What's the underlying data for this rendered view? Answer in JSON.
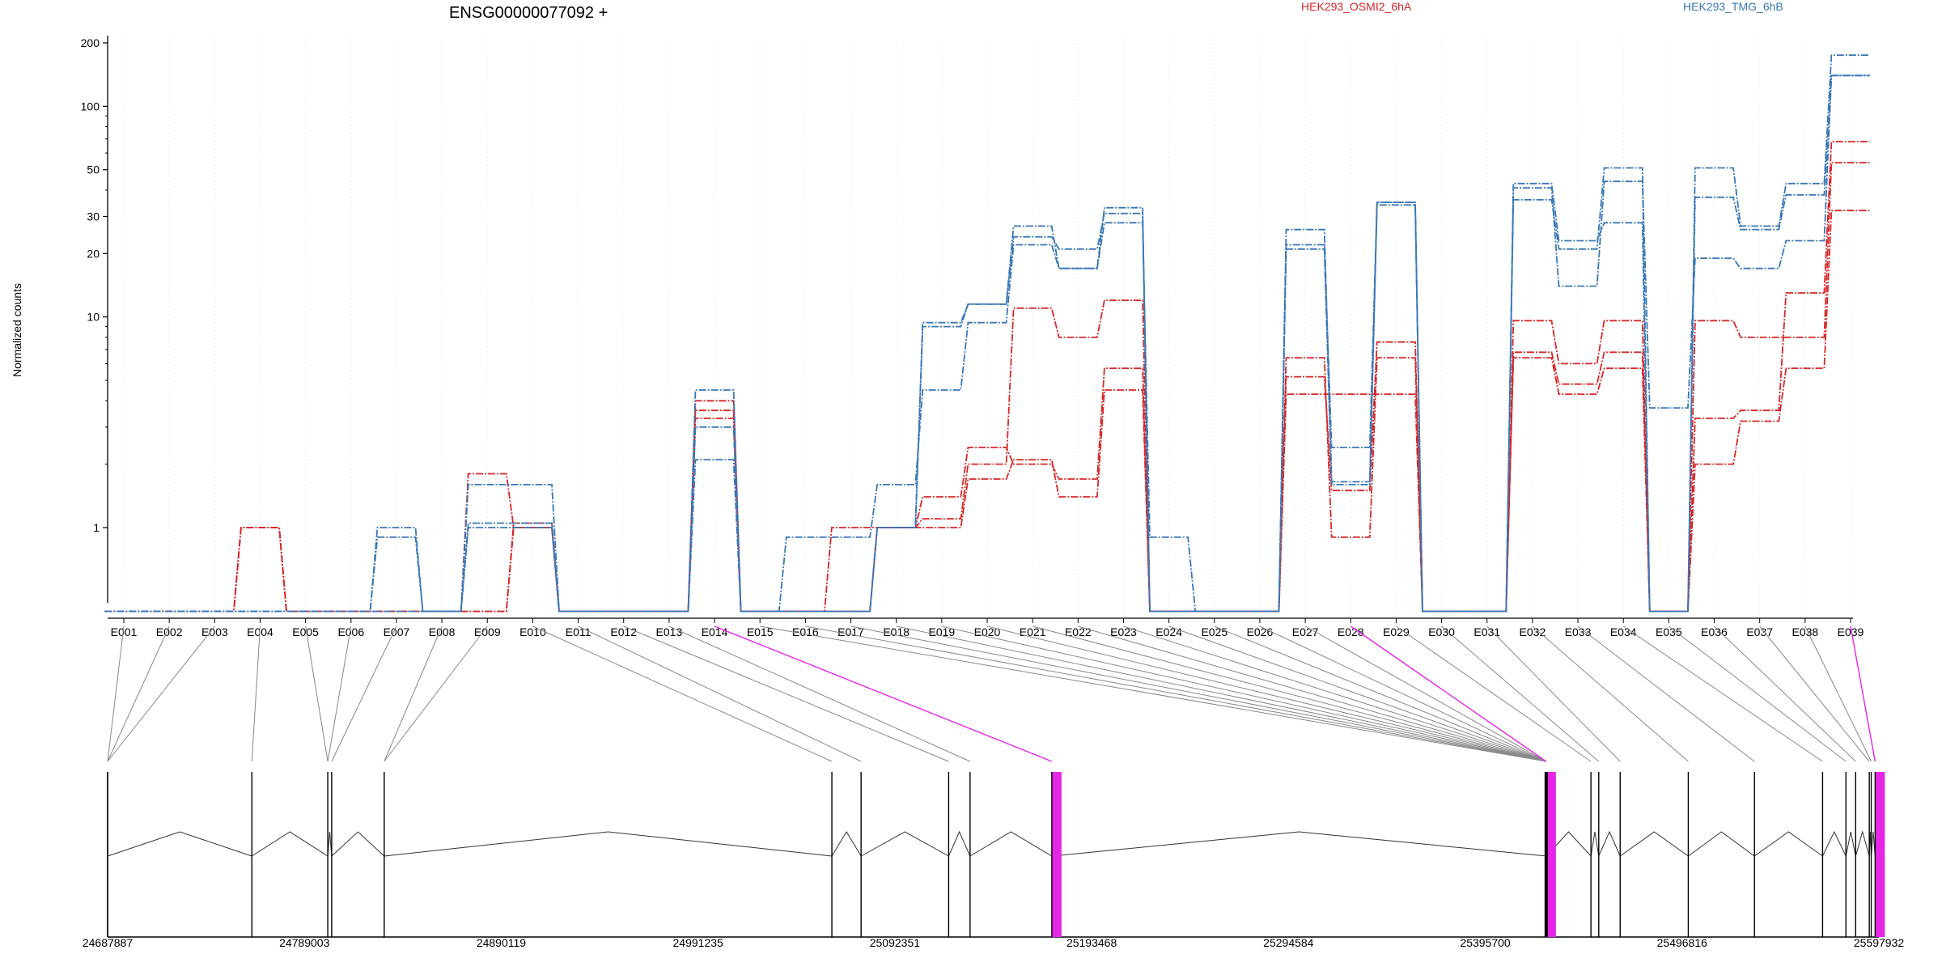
{
  "chart_data": [
    {
      "type": "line",
      "title": "ENSG00000077092 +",
      "xlabel": "",
      "ylabel": "Normalized counts",
      "y_scale": "log",
      "ylim": [
        0.4,
        220
      ],
      "y_ticks": [
        {
          "value": 1,
          "label": "1"
        },
        {
          "value": 10,
          "label": "10"
        },
        {
          "value": 20,
          "label": "20"
        },
        {
          "value": 30,
          "label": "30"
        },
        {
          "value": 50,
          "label": "50"
        },
        {
          "value": 100,
          "label": "100"
        },
        {
          "value": 200,
          "label": "200"
        }
      ],
      "grid": "vertical light dotted lines at exon positions",
      "legend_placement": "top",
      "categories": [
        "E001",
        "E002",
        "E003",
        "E004",
        "E005",
        "E006",
        "E007",
        "E008",
        "E009",
        "E010",
        "E011",
        "E012",
        "E013",
        "E014",
        "E015",
        "E016",
        "E017",
        "E018",
        "E019",
        "E020",
        "E021",
        "E022",
        "E023",
        "E024",
        "E025",
        "E026",
        "E027",
        "E028",
        "E029",
        "E030",
        "E031",
        "E032",
        "E033",
        "E034",
        "E035",
        "E036",
        "E037",
        "E038",
        "E039"
      ],
      "series": [
        {
          "name": "HEK293_OSMI2_6hA",
          "group": "HEK293_OSMI2_6hA",
          "color": "#d62728",
          "values": [
            0.4,
            0.4,
            0.4,
            1.0,
            0.4,
            0.4,
            0.4,
            0.4,
            0.4,
            1.05,
            0.4,
            0.4,
            0.4,
            3.6,
            0.4,
            0.4,
            0.4,
            1.0,
            1.0,
            1.7,
            2.1,
            1.4,
            4.5,
            0.4,
            0.4,
            0.4,
            4.3,
            4.3,
            4.3,
            0.4,
            0.4,
            6.4,
            4.3,
            5.7,
            0.4,
            2.0,
            3.2,
            5.7,
            32
          ]
        },
        {
          "name": "",
          "group": "HEK293_OSMI2_6hA",
          "color": "#d62728",
          "values": [
            0.4,
            0.4,
            0.4,
            1.0,
            0.4,
            0.4,
            0.4,
            0.4,
            1.8,
            1.0,
            0.4,
            0.4,
            0.4,
            4.0,
            0.4,
            0.4,
            1.0,
            1.0,
            1.4,
            2.4,
            2.0,
            1.7,
            5.7,
            0.4,
            0.4,
            0.4,
            6.4,
            0.9,
            6.4,
            0.4,
            0.4,
            9.6,
            6.0,
            9.6,
            0.4,
            9.6,
            8.0,
            8.0,
            54
          ]
        },
        {
          "name": "",
          "group": "HEK293_OSMI2_6hA",
          "color": "#d62728",
          "values": [
            0.4,
            0.4,
            0.4,
            1.0,
            0.4,
            0.4,
            0.4,
            0.4,
            0.4,
            1.0,
            0.4,
            0.4,
            0.4,
            3.3,
            0.4,
            0.4,
            0.4,
            1.0,
            1.1,
            2.0,
            11,
            8,
            12,
            0.4,
            0.4,
            0.4,
            5.2,
            1.5,
            7.6,
            0.4,
            0.4,
            6.8,
            4.8,
            6.8,
            0.4,
            3.3,
            3.6,
            13,
            68
          ]
        },
        {
          "name": "HEK293_TMG_6hB",
          "group": "HEK293_TMG_6hB",
          "color": "#3a77b5",
          "values": [
            0.4,
            0.4,
            0.4,
            0.4,
            0.4,
            0.4,
            0.9,
            0.4,
            1.0,
            1.0,
            0.4,
            0.4,
            0.4,
            2.1,
            0.4,
            0.9,
            0.9,
            1.6,
            4.5,
            9.4,
            22,
            17,
            28,
            0.9,
            0.4,
            0.4,
            21,
            1.6,
            34,
            0.4,
            0.4,
            41,
            14,
            44,
            3.7,
            19,
            17,
            23,
            140
          ]
        },
        {
          "name": "",
          "group": "HEK293_TMG_6hB",
          "color": "#3a77b5",
          "values": [
            0.4,
            0.4,
            0.4,
            0.4,
            0.4,
            0.4,
            1.0,
            0.4,
            1.6,
            1.6,
            0.4,
            0.4,
            0.4,
            4.5,
            0.4,
            0.4,
            0.4,
            1.0,
            9.4,
            11.5,
            24,
            21,
            31,
            0.4,
            0.4,
            0.4,
            22,
            2.4,
            35,
            0.4,
            0.4,
            43,
            23,
            28,
            0.4,
            51,
            27,
            43,
            175
          ]
        },
        {
          "name": "",
          "group": "HEK293_TMG_6hB",
          "color": "#3a77b5",
          "values": [
            0.4,
            0.4,
            0.4,
            0.4,
            0.4,
            0.4,
            0.4,
            0.4,
            1.05,
            1.05,
            0.4,
            0.4,
            0.4,
            3.0,
            0.4,
            0.4,
            0.4,
            1.0,
            9.0,
            11.5,
            27,
            17,
            33,
            0.4,
            0.4,
            0.4,
            26,
            1.65,
            35,
            0.4,
            0.4,
            36,
            21,
            51,
            0.4,
            37,
            26,
            38,
            140
          ]
        }
      ]
    },
    {
      "type": "gene-model",
      "xlim": [
        24687887,
        25597932
      ],
      "x_ticks": [
        {
          "value": 24687887,
          "label": "24687887"
        },
        {
          "value": 24789003,
          "label": "24789003"
        },
        {
          "value": 24890119,
          "label": "24890119"
        },
        {
          "value": 24991235,
          "label": "24991235"
        },
        {
          "value": 25092351,
          "label": "25092351"
        },
        {
          "value": 25193468,
          "label": "25193468"
        },
        {
          "value": 25294584,
          "label": "25294584"
        },
        {
          "value": 25395700,
          "label": "25395700"
        },
        {
          "value": 25496816,
          "label": "25496816"
        },
        {
          "value": 25597932,
          "label": "25597932"
        }
      ],
      "exon_genomic_positions": [
        24687887,
        24687887,
        24687887,
        24762000,
        24801000,
        24801000,
        24803000,
        24830000,
        24830000,
        25060000,
        25075000,
        25120000,
        25131000,
        25173000,
        25427000,
        25427000,
        25427000,
        25427000,
        25427000,
        25427000,
        25427000,
        25427000,
        25427000,
        25427000,
        25427000,
        25427000,
        25427000,
        25427000,
        25450000,
        25454000,
        25465000,
        25500000,
        25534000,
        25569000,
        25581000,
        25586000,
        25593000,
        25594000,
        25596000
      ],
      "highlighted_exons": [
        "E014",
        "E028",
        "E039"
      ],
      "highlight_color": "#e626e6",
      "link_color": "#888888"
    }
  ]
}
